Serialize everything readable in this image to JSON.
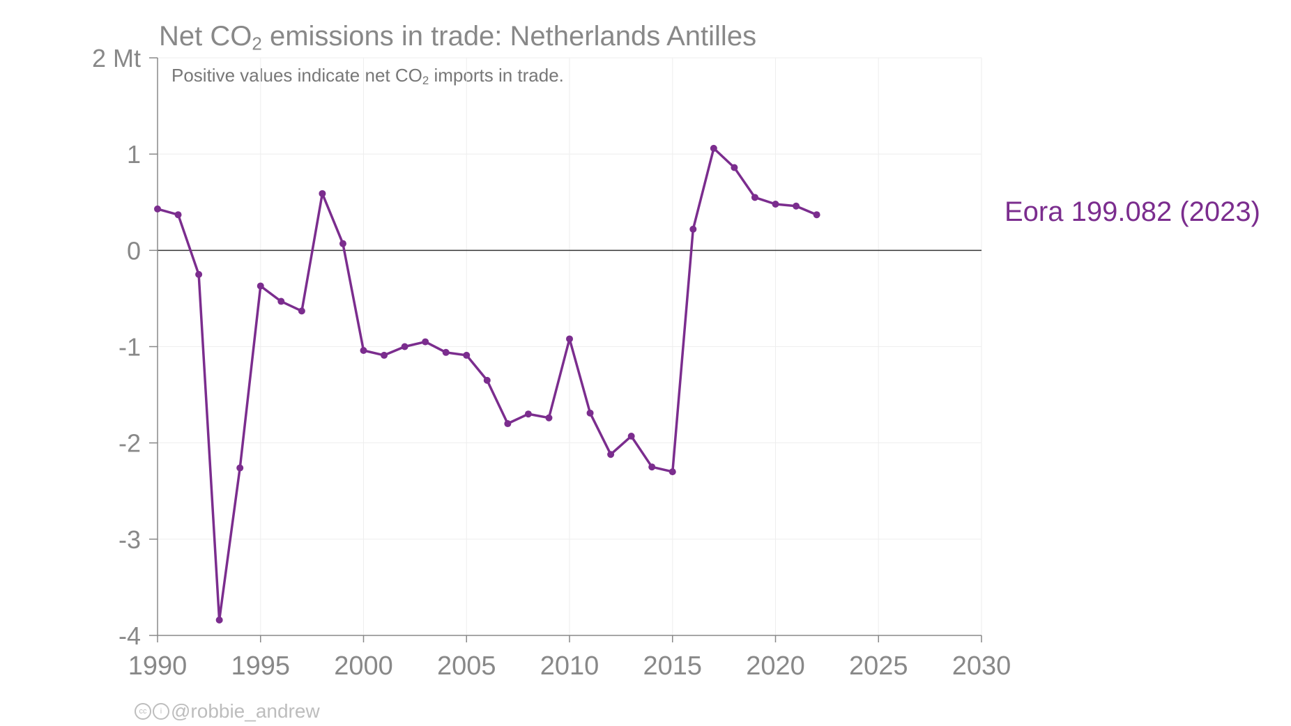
{
  "title": {
    "prefix": "Net CO",
    "sub": "2",
    "suffix": " emissions in trade: Netherlands Antilles"
  },
  "subtitle": {
    "prefix": "Positive values indicate net CO",
    "sub": "2",
    "suffix": " imports in trade."
  },
  "credit": {
    "icons": [
      "cc-icon",
      "attribution-icon"
    ],
    "handle": "@robbie_andrew"
  },
  "chart_data": {
    "type": "line",
    "title": "Net CO2 emissions in trade: Netherlands Antilles",
    "subtitle": "Positive values indicate net CO2 imports in trade.",
    "xlabel": "",
    "ylabel": "",
    "xlim": [
      1990,
      2030
    ],
    "ylim": [
      -4,
      2
    ],
    "x_ticks": [
      1990,
      1995,
      2000,
      2005,
      2010,
      2015,
      2020,
      2025,
      2030
    ],
    "x_tick_labels": [
      "1990",
      "1995",
      "2000",
      "2005",
      "2010",
      "2015",
      "2020",
      "2025",
      "2030"
    ],
    "y_ticks": [
      -4,
      -3,
      -2,
      -1,
      0,
      1,
      2
    ],
    "y_tick_labels": [
      "-4",
      "-3",
      "-2",
      "-1",
      "0",
      "1",
      "2 Mt"
    ],
    "grid": true,
    "zero_line": true,
    "series": [
      {
        "name": "Eora 199.082 (2023)",
        "color": "#7b2d8e",
        "x": [
          1990,
          1991,
          1992,
          1993,
          1994,
          1995,
          1996,
          1997,
          1998,
          1999,
          2000,
          2001,
          2002,
          2003,
          2004,
          2005,
          2006,
          2007,
          2008,
          2009,
          2010,
          2011,
          2012,
          2013,
          2014,
          2015,
          2016,
          2017,
          2018,
          2019,
          2020,
          2021,
          2022
        ],
        "values": [
          0.43,
          0.37,
          -0.25,
          -3.84,
          -2.26,
          -0.37,
          -0.53,
          -0.63,
          0.59,
          0.07,
          -1.04,
          -1.09,
          -1.0,
          -0.95,
          -1.06,
          -1.09,
          -1.35,
          -1.8,
          -1.7,
          -1.74,
          -0.92,
          -1.69,
          -2.12,
          -1.93,
          -2.25,
          -2.3,
          0.22,
          1.06,
          0.86,
          0.55,
          0.48,
          0.46,
          0.37
        ]
      }
    ]
  }
}
